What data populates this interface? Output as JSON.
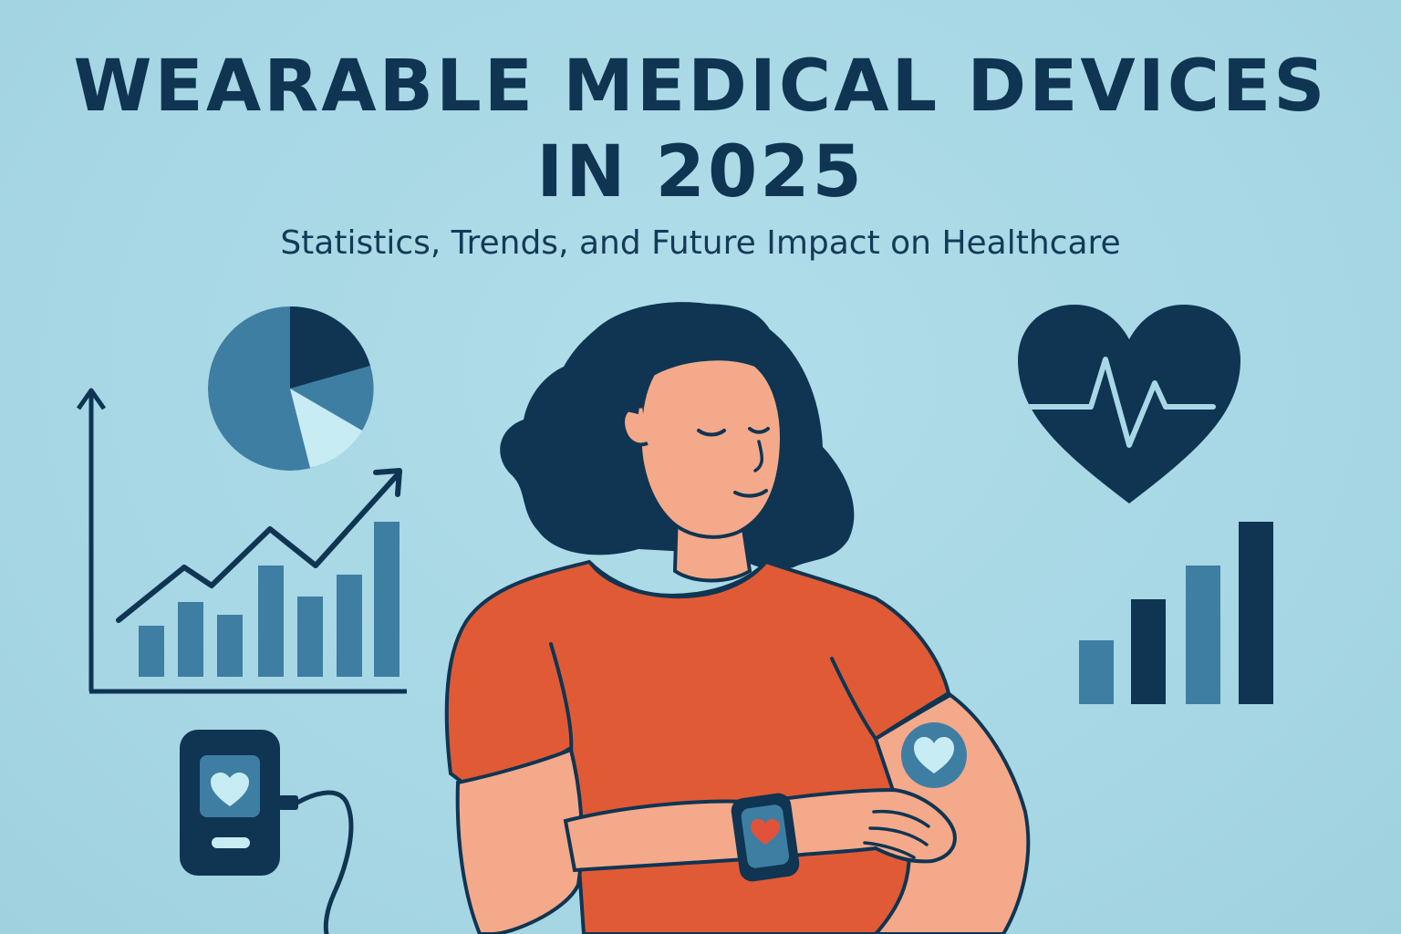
{
  "header": {
    "title_line1": "WEARABLE MEDICAL DEVICES",
    "title_line2": "IN 2025",
    "subtitle": "Statistics, Trends, and Future Impact on Healthcare"
  },
  "icons": [
    "pie-chart-icon",
    "growth-bar-chart-icon",
    "heart-rate-icon",
    "signal-bars-icon",
    "heart-monitor-device-icon",
    "smartwatch-icon",
    "arm-patch-sensor-icon"
  ],
  "colors": {
    "background": "#a8d8e6",
    "navy": "#0f3552",
    "steel_blue": "#3f7ea3",
    "light_blue": "#c8ecf3",
    "shirt": "#e05a35",
    "skin": "#f4a98a",
    "heart_red": "#e0533a"
  }
}
